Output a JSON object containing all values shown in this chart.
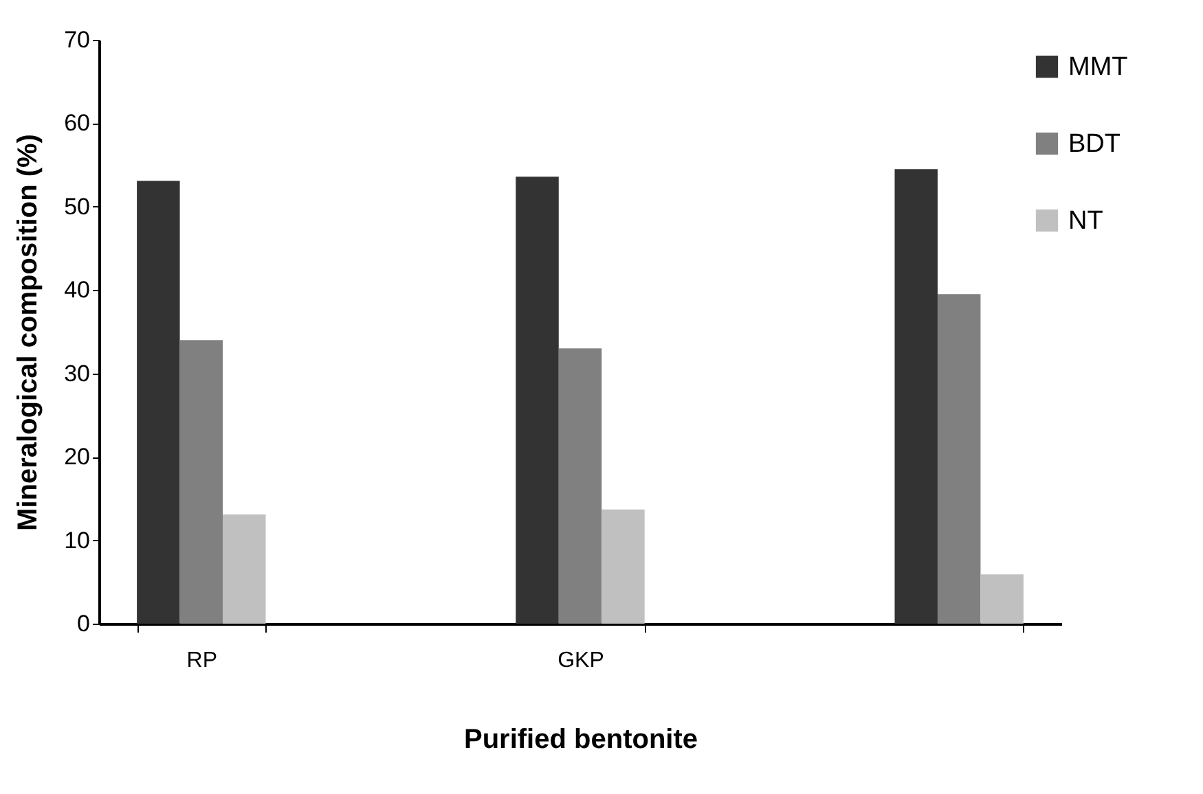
{
  "chart_data": {
    "type": "bar",
    "xlabel": "Purified bentonite",
    "ylabel": "Mineralogical composition (%)",
    "categories": [
      "RP",
      "GKP",
      null
    ],
    "series": [
      {
        "name": "MMT",
        "color": "#333333",
        "values": [
          53.1,
          53.6,
          54.5
        ]
      },
      {
        "name": "BDT",
        "color": "#808080",
        "values": [
          34.0,
          33.0,
          39.5
        ]
      },
      {
        "name": "NT",
        "color": "#c0c0c0",
        "values": [
          13.1,
          13.7,
          5.9
        ]
      }
    ],
    "ylim": [
      0,
      70
    ],
    "yticks": [
      0,
      10,
      20,
      30,
      40,
      50,
      60,
      70
    ],
    "grid": false,
    "legend": "top right"
  }
}
